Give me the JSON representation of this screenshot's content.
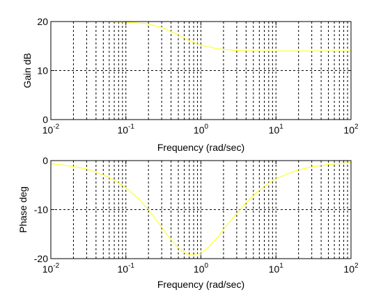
{
  "chart_data": [
    {
      "type": "line",
      "xscale": "log",
      "xlim": [
        0.01,
        100
      ],
      "ylim": [
        0,
        20
      ],
      "xlabel": "Frequency (rad/sec)",
      "ylabel": "Gain dB",
      "xtick_labels": [
        {
          "base": "10",
          "exp": "-2"
        },
        {
          "base": "10",
          "exp": "-1"
        },
        {
          "base": "10",
          "exp": "0"
        },
        {
          "base": "10",
          "exp": "1"
        },
        {
          "base": "10",
          "exp": "2"
        }
      ],
      "ytick_labels": [
        "20",
        "10",
        "0"
      ],
      "grid": true,
      "series": [
        {
          "color": "#ffff00",
          "x": [
            0.01,
            0.02,
            0.05,
            0.1,
            0.15,
            0.2,
            0.3,
            0.5,
            0.7,
            1,
            1.5,
            2,
            3,
            5,
            10,
            20,
            50,
            100
          ],
          "y": [
            20,
            20,
            20,
            19.9,
            19.7,
            19.5,
            18.8,
            17.3,
            16.1,
            15.2,
            14.6,
            14.3,
            14.1,
            14.0,
            14.0,
            14.0,
            14.0,
            14.0
          ]
        }
      ]
    },
    {
      "type": "line",
      "xscale": "log",
      "xlim": [
        0.01,
        100
      ],
      "ylim": [
        -20,
        0
      ],
      "xlabel": "Frequency (rad/sec)",
      "ylabel": "Phase deg",
      "xtick_labels": [
        {
          "base": "10",
          "exp": "-2"
        },
        {
          "base": "10",
          "exp": "-1"
        },
        {
          "base": "10",
          "exp": "0"
        },
        {
          "base": "10",
          "exp": "1"
        },
        {
          "base": "10",
          "exp": "2"
        }
      ],
      "ytick_labels": [
        "0",
        "-10",
        "-20"
      ],
      "grid": true,
      "series": [
        {
          "color": "#ffff00",
          "x": [
            0.01,
            0.02,
            0.03,
            0.05,
            0.07,
            0.1,
            0.15,
            0.2,
            0.3,
            0.4,
            0.5,
            0.6,
            0.7,
            0.8,
            1,
            1.3,
            1.7,
            2,
            3,
            4,
            5,
            7,
            10,
            15,
            20,
            30,
            50,
            100
          ],
          "y": [
            -0.6,
            -1.2,
            -1.7,
            -2.9,
            -4.0,
            -5.5,
            -7.9,
            -10.0,
            -13.6,
            -16.2,
            -17.8,
            -18.8,
            -19.2,
            -19.3,
            -18.9,
            -17.5,
            -15.5,
            -14.0,
            -10.8,
            -8.6,
            -7.1,
            -5.2,
            -3.7,
            -2.6,
            -1.9,
            -1.3,
            -0.8,
            -0.4
          ]
        }
      ]
    }
  ]
}
